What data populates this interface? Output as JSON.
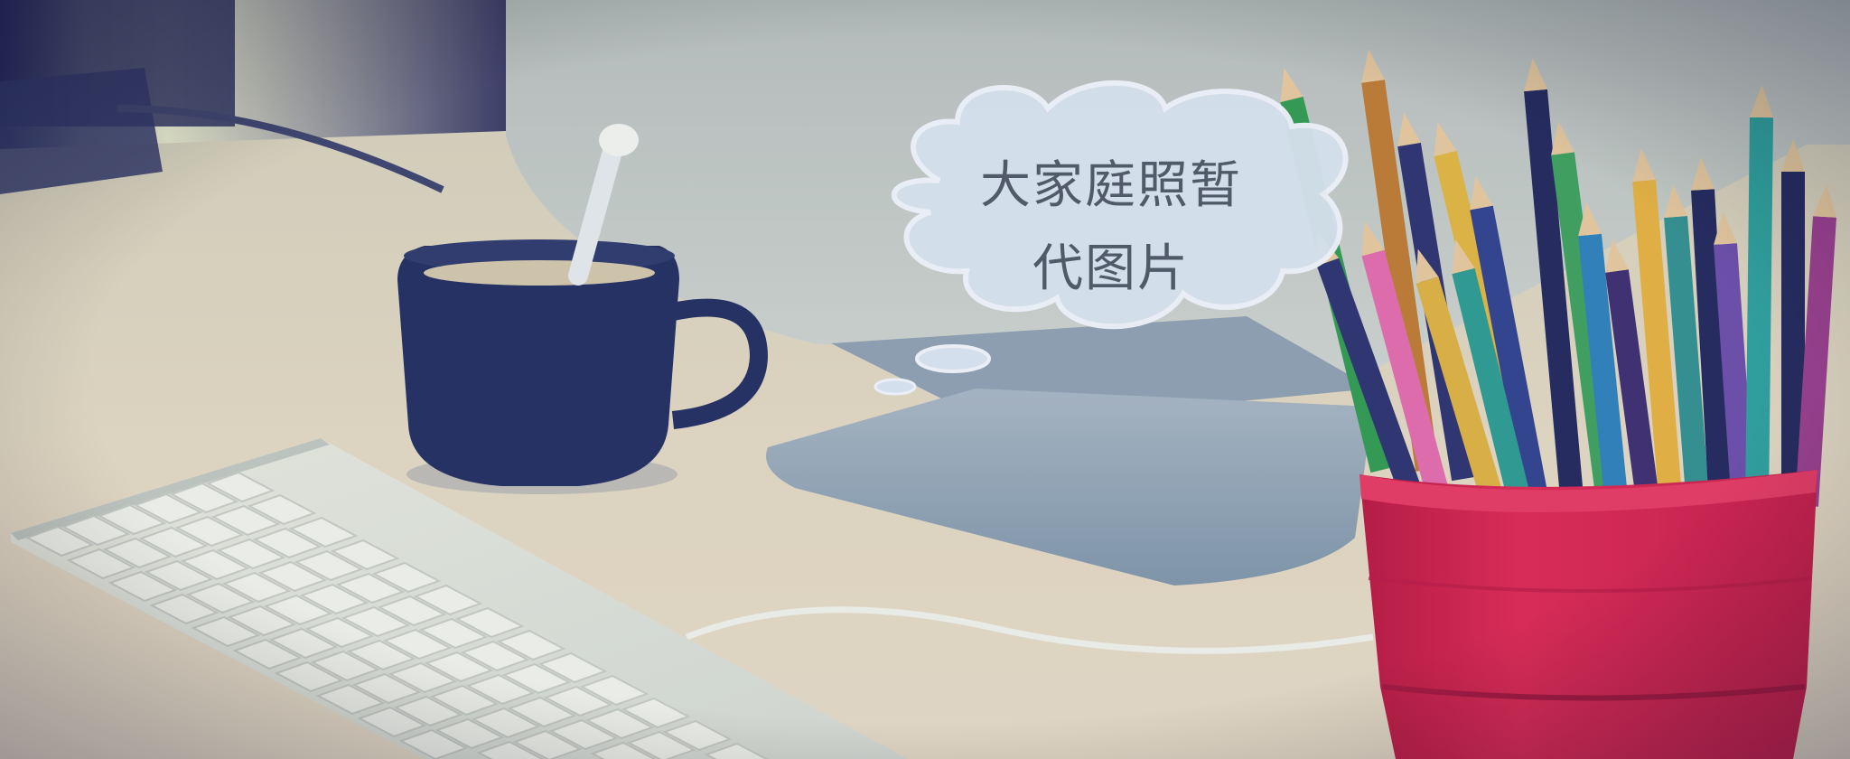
{
  "placeholder": {
    "line1": "大家庭照暂",
    "line2": "代图片"
  },
  "colors": {
    "background_top": "#1b1a4e",
    "desk": "#e6dcc3",
    "cup": "#1f2b5c",
    "pot": "#d81e47",
    "cloud": "#dbe6ef"
  }
}
